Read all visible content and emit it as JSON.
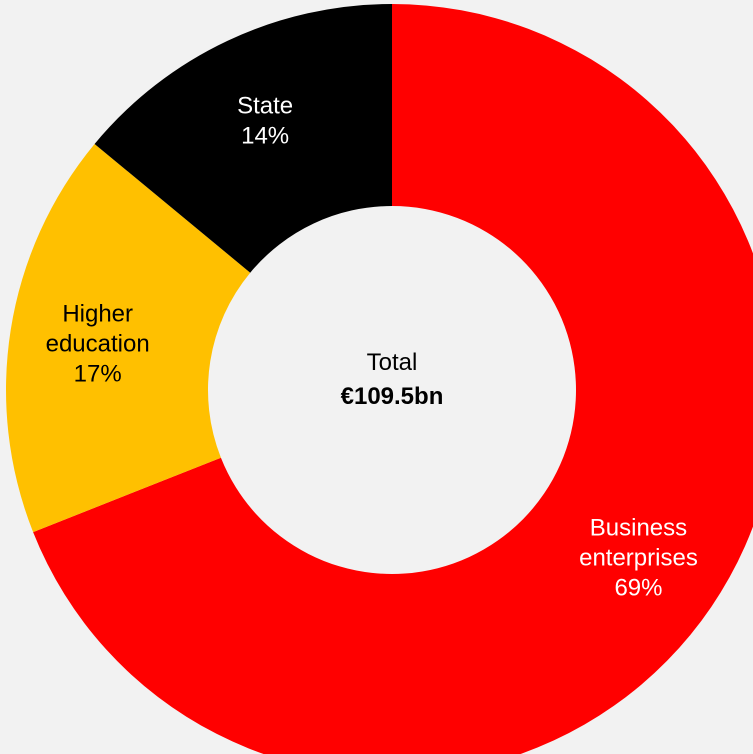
{
  "chart_data": {
    "type": "pie",
    "variant": "donut",
    "center_title": "Total",
    "center_value": "€109.5bn",
    "slices": [
      {
        "name": "Business enterprises",
        "name_lines": [
          "Business",
          "enterprises"
        ],
        "value": 69,
        "value_label": "69%",
        "color": "#ff0000",
        "text_color": "#ffffff"
      },
      {
        "name": "Higher education",
        "name_lines": [
          "Higher",
          "education"
        ],
        "value": 17,
        "value_label": "17%",
        "color": "#ffc000",
        "text_color": "#000000"
      },
      {
        "name": "State",
        "name_lines": [
          "State"
        ],
        "value": 14,
        "value_label": "14%",
        "color": "#000000",
        "text_color": "#ffffff"
      }
    ],
    "start": "12 o'clock",
    "direction": "clockwise",
    "legend": "none",
    "background": "#f2f2f2"
  }
}
